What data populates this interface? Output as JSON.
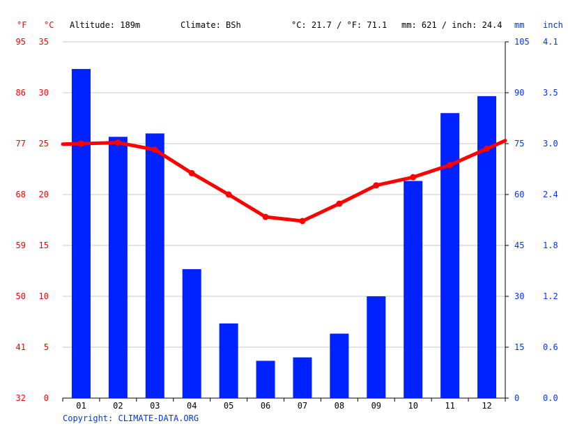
{
  "header": {
    "unit_f": "°F",
    "unit_c": "°C",
    "altitude": "Altitude: 189m",
    "climate": "Climate: BSh",
    "avg_temp": "°C: 21.7 / °F: 71.1",
    "precip_total": "mm: 621 / inch: 24.4",
    "unit_mm": "mm",
    "unit_inch": "inch"
  },
  "footer": {
    "copyright": "Copyright: CLIMATE-DATA.ORG"
  },
  "colors": {
    "temperature": "#ff0000",
    "precipitation": "#0022ff",
    "grid": "#c8c8c8"
  },
  "chart_data": {
    "type": "bar",
    "categories": [
      "01",
      "02",
      "03",
      "04",
      "05",
      "06",
      "07",
      "08",
      "09",
      "10",
      "11",
      "12"
    ],
    "series": [
      {
        "type": "bar",
        "axis": "right",
        "unit": "mm",
        "values": [
          97,
          77,
          78,
          38,
          22,
          11,
          12,
          19,
          30,
          64,
          84,
          89
        ]
      },
      {
        "type": "line",
        "axis": "left",
        "unit": "°C",
        "values": [
          25.0,
          25.1,
          24.4,
          22.1,
          20.0,
          17.8,
          17.4,
          19.1,
          20.9,
          21.7,
          22.9,
          24.5
        ]
      }
    ],
    "y_left_c": {
      "ticks": [
        "0",
        "5",
        "10",
        "15",
        "20",
        "25",
        "30",
        "35"
      ],
      "ylim": [
        0,
        35
      ]
    },
    "y_left_f": {
      "ticks": [
        "32",
        "41",
        "50",
        "59",
        "68",
        "77",
        "86",
        "95"
      ]
    },
    "y_right_mm": {
      "ticks": [
        "0",
        "15",
        "30",
        "45",
        "60",
        "75",
        "90",
        "105"
      ],
      "ylim": [
        0,
        105
      ]
    },
    "y_right_inch": {
      "ticks": [
        "0.0",
        "0.6",
        "1.2",
        "1.8",
        "2.4",
        "3.0",
        "3.5",
        "4.1"
      ]
    },
    "grid": true
  }
}
